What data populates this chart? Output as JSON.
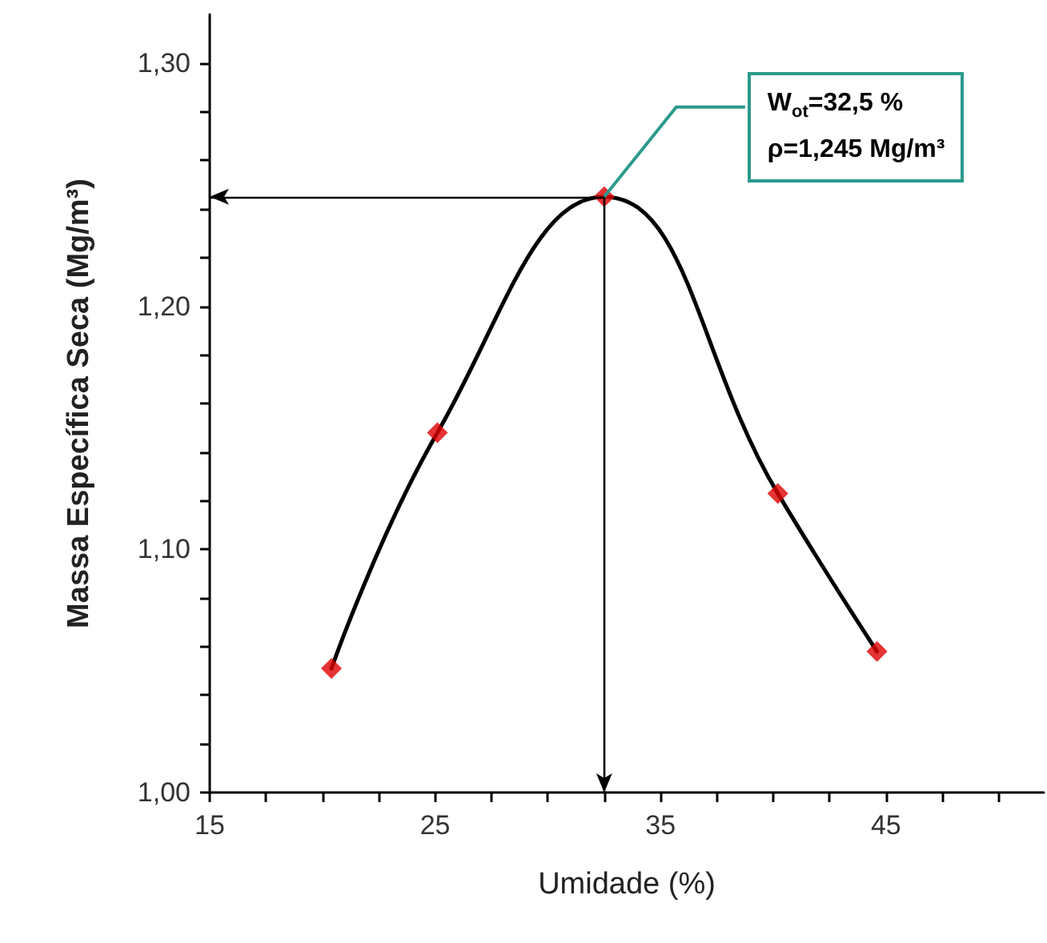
{
  "chart_data": {
    "type": "line",
    "xlabel": "Umidade (%)",
    "ylabel": "Massa Específica Seca (Mg/m³)",
    "x": [
      20.4,
      25.1,
      32.5,
      40.2,
      44.6
    ],
    "series": [
      {
        "type": "line",
        "color": "#000000",
        "marker": "none",
        "values": [
          1.051,
          1.148,
          1.245,
          1.123,
          1.058
        ]
      },
      {
        "type": "scatter",
        "color": "#e00000",
        "marker": "diamond",
        "values": [
          1.051,
          1.148,
          1.245,
          1.123,
          1.058
        ]
      }
    ],
    "xlim": [
      15,
      52
    ],
    "xticks": [
      15,
      {
        "value": 17.5,
        "label": null
      },
      {
        "value": 20,
        "label": null
      },
      {
        "value": 22.5,
        "label": null
      },
      25,
      {
        "value": 27.5,
        "label": null
      },
      {
        "value": 30,
        "label": null
      },
      {
        "value": 32.5,
        "label": null
      },
      35,
      {
        "value": 37.5,
        "label": null
      },
      {
        "value": 40,
        "label": null
      },
      {
        "value": 42.5,
        "label": null
      },
      45,
      {
        "value": 47.5,
        "label": null
      },
      {
        "value": 50,
        "label": null
      }
    ],
    "ylim": [
      1.0,
      1.32
    ],
    "yticks": [
      {
        "value": 1.0,
        "label": "1,00"
      },
      {
        "value": 1.02,
        "label": null
      },
      {
        "value": 1.04,
        "label": null
      },
      {
        "value": 1.06,
        "label": null
      },
      {
        "value": 1.08,
        "label": null
      },
      {
        "value": 1.1,
        "label": "1,10"
      },
      {
        "value": 1.12,
        "label": null
      },
      {
        "value": 1.14,
        "label": null
      },
      {
        "value": 1.16,
        "label": null
      },
      {
        "value": 1.18,
        "label": null
      },
      {
        "value": 1.2,
        "label": "1,20"
      },
      {
        "value": 1.22,
        "label": null
      },
      {
        "value": 1.24,
        "label": null
      },
      {
        "value": 1.26,
        "label": null
      },
      {
        "value": 1.28,
        "label": null
      },
      {
        "value": 1.3,
        "label": "1,30"
      }
    ],
    "ref_lines": [
      {
        "axis": "y",
        "value": 1.245,
        "color": "#000000"
      },
      {
        "axis": "x",
        "value": 32.5,
        "color": "#000000"
      }
    ],
    "annotations": [
      {
        "text": "W$_{ot}$=32,5 %\nρ=1,245 Mg/m³",
        "x": 32.5,
        "y": 1.245
      }
    ],
    "grid": false
  }
}
